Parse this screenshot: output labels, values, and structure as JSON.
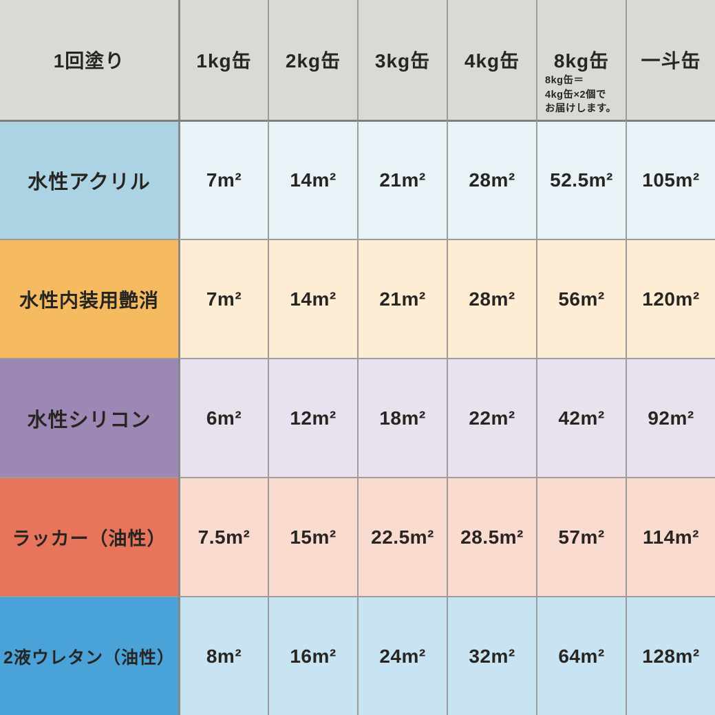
{
  "colors": {
    "header_bg": "#dbd9d4",
    "grid_line": "#9c9c9c",
    "header_underline": "#7e7e7e",
    "text": "#262522"
  },
  "table": {
    "header": {
      "row_label": "1回塗り",
      "columns": [
        "1kg缶",
        "2kg缶",
        "3kg缶",
        "4kg缶",
        "8kg缶",
        "一斗缶"
      ],
      "note_lines": [
        "8kg缶＝",
        "4kg缶×2個で",
        "お届けします。"
      ]
    },
    "rows": [
      {
        "label": "水性アクリル",
        "label_bg": "#abd3e4",
        "data_bg": "#e9f2f7",
        "values": [
          "7m²",
          "14m²",
          "21m²",
          "28m²",
          "52.5m²",
          "105m²"
        ]
      },
      {
        "label": "水性内装用艶消",
        "label_bg": "#f6bb61",
        "data_bg": "#fdedd4",
        "values": [
          "7m²",
          "14m²",
          "21m²",
          "28m²",
          "56m²",
          "120m²"
        ]
      },
      {
        "label": "水性シリコン",
        "label_bg": "#9d87b4",
        "data_bg": "#e8e2ee",
        "values": [
          "6m²",
          "12m²",
          "18m²",
          "22m²",
          "42m²",
          "92m²"
        ]
      },
      {
        "label": "ラッカー（油性）",
        "label_bg": "#e7745b",
        "data_bg": "#f9dbd0",
        "values": [
          "7.5m²",
          "15m²",
          "22.5m²",
          "28.5m²",
          "57m²",
          "114m²"
        ]
      },
      {
        "label": "2液ウレタン（油性）",
        "label_bg": "#49a3d9",
        "data_bg": "#c8e4f2",
        "values": [
          "8m²",
          "16m²",
          "24m²",
          "32m²",
          "64m²",
          "128m²"
        ]
      }
    ]
  },
  "chart_data": {
    "type": "table",
    "title": "1回塗り",
    "unit": "m²",
    "columns": [
      "1kg缶",
      "2kg缶",
      "3kg缶",
      "4kg缶",
      "8kg缶",
      "一斗缶"
    ],
    "note": "8kg缶＝4kg缶×2個でお届けします。",
    "rows": [
      {
        "name": "水性アクリル",
        "values_m2": [
          7,
          14,
          21,
          28,
          52.5,
          105
        ],
        "row_color": "#abd3e4"
      },
      {
        "name": "水性内装用艶消",
        "values_m2": [
          7,
          14,
          21,
          28,
          56,
          120
        ],
        "row_color": "#f6bb61"
      },
      {
        "name": "水性シリコン",
        "values_m2": [
          6,
          12,
          18,
          22,
          42,
          92
        ],
        "row_color": "#9d87b4"
      },
      {
        "name": "ラッカー（油性）",
        "values_m2": [
          7.5,
          15,
          22.5,
          28.5,
          57,
          114
        ],
        "row_color": "#e7745b"
      },
      {
        "name": "2液ウレタン（油性）",
        "values_m2": [
          8,
          16,
          24,
          32,
          64,
          128
        ],
        "row_color": "#49a3d9"
      }
    ]
  }
}
